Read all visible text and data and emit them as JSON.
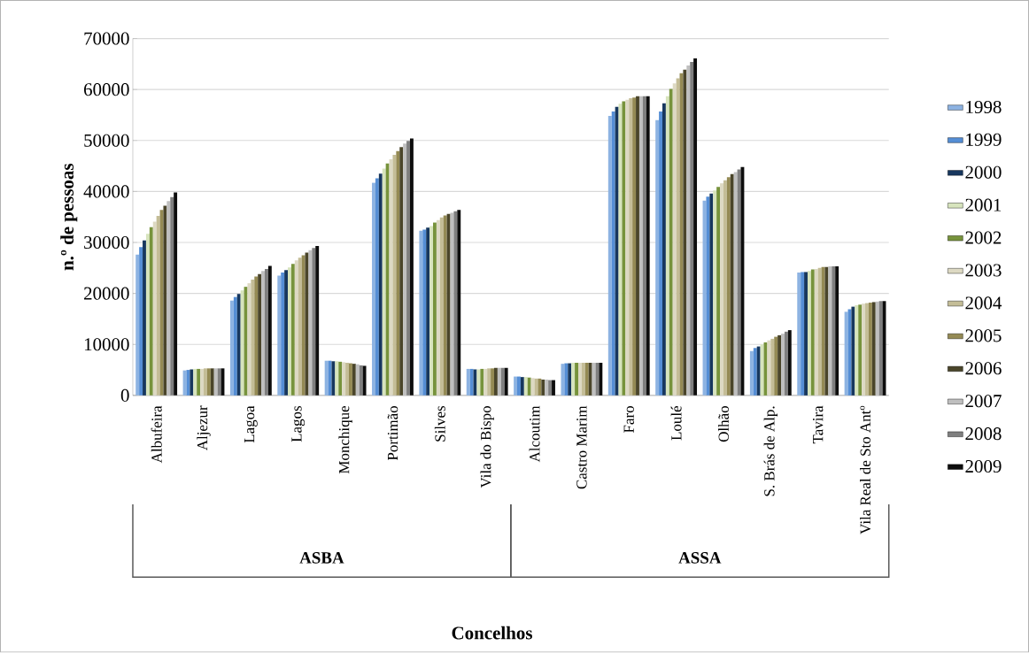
{
  "chart_data": {
    "type": "bar",
    "ylabel": "n.º de pessoas",
    "xlabel": "Concelhos",
    "categories": [
      "Albufeira",
      "Aljezur",
      "Lagoa",
      "Lagos",
      "Monchique",
      "Portimão",
      "Silves",
      "Vila do Bispo",
      "Alcoutim",
      "Castro Marim",
      "Faro",
      "Loulé",
      "Olhão",
      "S. Brás de Alp.",
      "Tavira",
      "Vila Real de Sto Antº"
    ],
    "annotations": [
      "ASBA",
      "ASSA"
    ],
    "ylim": [
      0,
      70000
    ],
    "yticks": [
      0,
      10000,
      20000,
      30000,
      40000,
      50000,
      60000,
      70000
    ],
    "grid": "y",
    "legend": "right",
    "series": [
      {
        "name": "1998",
        "color": "#8db3e2",
        "values": [
          27600,
          4900,
          18600,
          23500,
          6800,
          41700,
          32300,
          5200,
          3700,
          6200,
          54800,
          54000,
          38200,
          8700,
          24100,
          16400
        ]
      },
      {
        "name": "1999",
        "color": "#558ed5",
        "values": [
          29100,
          5000,
          19300,
          24100,
          6800,
          42600,
          32500,
          5200,
          3700,
          6300,
          55700,
          55700,
          39000,
          9300,
          24200,
          16900
        ]
      },
      {
        "name": "2000",
        "color": "#17375e",
        "values": [
          30400,
          5100,
          19900,
          24600,
          6700,
          43500,
          32900,
          5100,
          3600,
          6300,
          56600,
          57300,
          39600,
          9600,
          24200,
          17400
        ]
      },
      {
        "name": "2001",
        "color": "#d7e4bd",
        "values": [
          31700,
          5200,
          20600,
          25100,
          6700,
          44500,
          33200,
          5100,
          3600,
          6400,
          57200,
          58700,
          40200,
          10000,
          24400,
          17700
        ]
      },
      {
        "name": "2002",
        "color": "#77933c",
        "values": [
          33000,
          5200,
          21300,
          25800,
          6600,
          45500,
          33900,
          5200,
          3500,
          6400,
          57700,
          60100,
          40900,
          10400,
          24700,
          17800
        ]
      },
      {
        "name": "2003",
        "color": "#ddd9c3",
        "values": [
          34100,
          5200,
          22000,
          26500,
          6500,
          46300,
          34400,
          5200,
          3400,
          6400,
          58000,
          61200,
          41600,
          10800,
          24800,
          18000
        ]
      },
      {
        "name": "2004",
        "color": "#c4bd97",
        "values": [
          35200,
          5300,
          22700,
          27000,
          6400,
          47200,
          34900,
          5300,
          3300,
          6400,
          58300,
          62200,
          42200,
          11100,
          25000,
          18100
        ]
      },
      {
        "name": "2005",
        "color": "#948a54",
        "values": [
          36400,
          5300,
          23300,
          27500,
          6300,
          47900,
          35300,
          5300,
          3300,
          6400,
          58400,
          63200,
          42800,
          11500,
          25200,
          18200
        ]
      },
      {
        "name": "2006",
        "color": "#4a452a",
        "values": [
          37200,
          5300,
          23800,
          28000,
          6200,
          48700,
          35600,
          5400,
          3100,
          6400,
          58700,
          63900,
          43400,
          11800,
          25200,
          18300
        ]
      },
      {
        "name": "2007",
        "color": "#bfbfbf",
        "values": [
          38100,
          5300,
          24400,
          28500,
          6100,
          49400,
          35800,
          5400,
          3100,
          6400,
          58700,
          64700,
          43800,
          12100,
          25300,
          18400
        ]
      },
      {
        "name": "2008",
        "color": "#7f7f7f",
        "values": [
          38900,
          5300,
          24800,
          28900,
          5900,
          49900,
          36100,
          5400,
          3000,
          6400,
          58700,
          65400,
          44300,
          12500,
          25300,
          18500
        ]
      },
      {
        "name": "2009",
        "color": "#0d0d0d",
        "values": [
          39800,
          5300,
          25400,
          29300,
          5800,
          50400,
          36400,
          5400,
          3000,
          6400,
          58700,
          66100,
          44800,
          12800,
          25300,
          18500
        ]
      }
    ]
  }
}
